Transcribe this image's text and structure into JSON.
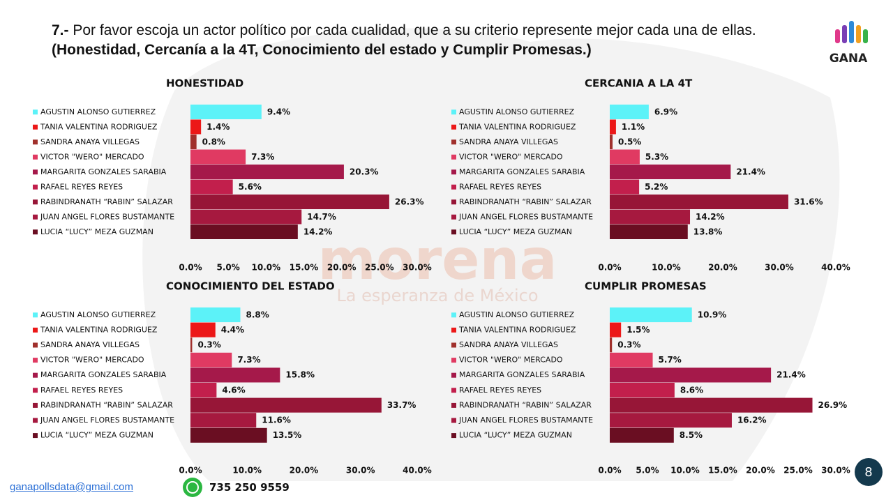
{
  "question": {
    "number": "7.-",
    "text": "Por favor escoja un actor político por cada cualidad, que a su criterio represente mejor cada una de ellas.",
    "emphasis": "(Honestidad, Cercanía a la 4T, Conocimiento del estado y Cumplir Promesas.)"
  },
  "logo": "GANA",
  "watermark": {
    "brand": "morena",
    "slogan": "La esperanza de México"
  },
  "footer": {
    "email": "ganapollsdata@gmail.com",
    "phone": "735 250 9559",
    "page": "8"
  },
  "chart_data": [
    {
      "type": "bar",
      "orientation": "horizontal",
      "title": "HONESTIDAD",
      "categories": [
        "AGUSTIN ALONSO GUTIERREZ",
        "TANIA VALENTINA RODRIGUEZ",
        "SANDRA ANAYA VILLEGAS",
        "VICTOR \"WERO\" MERCADO",
        "MARGARITA GONZALES SARABIA",
        "RAFAEL REYES REYES",
        "RABINDRANATH “RABIN” SALAZAR",
        "JUAN ANGEL FLORES BUSTAMANTE",
        "LUCIA “LUCY” MEZA GUZMAN"
      ],
      "colors": [
        "#5cf2f8",
        "#ec1818",
        "#a0302c",
        "#e03a62",
        "#a5194a",
        "#c21f4c",
        "#971637",
        "#a6193f",
        "#6a0e22"
      ],
      "values": [
        9.4,
        1.4,
        0.8,
        7.3,
        20.3,
        5.6,
        26.3,
        14.7,
        14.2
      ],
      "value_labels": [
        "9.4%",
        "1.4%",
        "0.8%",
        "7.3%",
        "20.3%",
        "5.6%",
        "26.3%",
        "14.7%",
        "14.2%"
      ],
      "xlim": [
        0,
        30
      ],
      "xticks": [
        {
          "value": 0,
          "label": "0.0%"
        },
        {
          "value": 5,
          "label": "5.0%"
        },
        {
          "value": 10,
          "label": "10.0%"
        },
        {
          "value": 15,
          "label": "15.0%"
        },
        {
          "value": 20,
          "label": "20.0%"
        },
        {
          "value": 25,
          "label": "25.0%"
        },
        {
          "value": 30,
          "label": "30.0%"
        }
      ],
      "grid": false
    },
    {
      "type": "bar",
      "orientation": "horizontal",
      "title": "CERCANIA A LA 4T",
      "categories": [
        "AGUSTIN ALONSO GUTIERREZ",
        "TANIA VALENTINA RODRIGUEZ",
        "SANDRA ANAYA VILLEGAS",
        "VICTOR \"WERO\" MERCADO",
        "MARGARITA GONZALES SARABIA",
        "RAFAEL REYES REYES",
        "RABINDRANATH “RABIN” SALAZAR",
        "JUAN ANGEL FLORES BUSTAMANTE",
        "LUCIA “LUCY” MEZA GUZMAN"
      ],
      "colors": [
        "#5cf2f8",
        "#ec1818",
        "#a0302c",
        "#e03a62",
        "#a5194a",
        "#c21f4c",
        "#971637",
        "#a6193f",
        "#6a0e22"
      ],
      "values": [
        6.9,
        1.1,
        0.5,
        5.3,
        21.4,
        5.2,
        31.6,
        14.2,
        13.8
      ],
      "value_labels": [
        "6.9%",
        "1.1%",
        "0.5%",
        "5.3%",
        "21.4%",
        "5.2%",
        "31.6%",
        "14.2%",
        "13.8%"
      ],
      "xlim": [
        0,
        40
      ],
      "xticks": [
        {
          "value": 0,
          "label": "0.0%"
        },
        {
          "value": 10,
          "label": "10.0%"
        },
        {
          "value": 20,
          "label": "20.0%"
        },
        {
          "value": 30,
          "label": "30.0%"
        },
        {
          "value": 40,
          "label": "40.0%"
        }
      ],
      "grid": false
    },
    {
      "type": "bar",
      "orientation": "horizontal",
      "title": "CONOCIMIENTO DEL ESTADO",
      "categories": [
        "AGUSTIN ALONSO GUTIERREZ",
        "TANIA VALENTINA RODRIGUEZ",
        "SANDRA ANAYA VILLEGAS",
        "VICTOR \"WERO\" MERCADO",
        "MARGARITA GONZALES SARABIA",
        "RAFAEL REYES REYES",
        "RABINDRANATH “RABIN” SALAZAR",
        "JUAN ANGEL FLORES BUSTAMANTE",
        "LUCIA “LUCY” MEZA GUZMAN"
      ],
      "colors": [
        "#5cf2f8",
        "#ec1818",
        "#a0302c",
        "#e03a62",
        "#a5194a",
        "#c21f4c",
        "#971637",
        "#a6193f",
        "#6a0e22"
      ],
      "values": [
        8.8,
        4.4,
        0.3,
        7.3,
        15.8,
        4.6,
        33.7,
        11.6,
        13.5
      ],
      "value_labels": [
        "8.8%",
        "4.4%",
        "0.3%",
        "7.3%",
        "15.8%",
        "4.6%",
        "33.7%",
        "11.6%",
        "13.5%"
      ],
      "xlim": [
        0,
        40
      ],
      "xticks": [
        {
          "value": 0,
          "label": "0.0%"
        },
        {
          "value": 10,
          "label": "10.0%"
        },
        {
          "value": 20,
          "label": "20.0%"
        },
        {
          "value": 30,
          "label": "30.0%"
        },
        {
          "value": 40,
          "label": "40.0%"
        }
      ],
      "grid": false
    },
    {
      "type": "bar",
      "orientation": "horizontal",
      "title": "CUMPLIR PROMESAS",
      "categories": [
        "AGUSTIN ALONSO GUTIERREZ",
        "TANIA VALENTINA RODRIGUEZ",
        "SANDRA ANAYA VILLEGAS",
        "VICTOR \"WERO\" MERCADO",
        "MARGARITA GONZALES SARABIA",
        "RAFAEL REYES REYES",
        "RABINDRANATH “RABIN” SALAZAR",
        "JUAN ANGEL FLORES BUSTAMANTE",
        "LUCIA “LUCY” MEZA GUZMAN"
      ],
      "colors": [
        "#5cf2f8",
        "#ec1818",
        "#a0302c",
        "#e03a62",
        "#a5194a",
        "#c21f4c",
        "#971637",
        "#a6193f",
        "#6a0e22"
      ],
      "values": [
        10.9,
        1.5,
        0.3,
        5.7,
        21.4,
        8.6,
        26.9,
        16.2,
        8.5
      ],
      "value_labels": [
        "10.9%",
        "1.5%",
        "0.3%",
        "5.7%",
        "21.4%",
        "8.6%",
        "26.9%",
        "16.2%",
        "8.5%"
      ],
      "xlim": [
        0,
        30
      ],
      "xticks": [
        {
          "value": 0,
          "label": "0.0%"
        },
        {
          "value": 5,
          "label": "5.0%"
        },
        {
          "value": 10,
          "label": "10.0%"
        },
        {
          "value": 15,
          "label": "15.0%"
        },
        {
          "value": 20,
          "label": "20.0%"
        },
        {
          "value": 25,
          "label": "25.0%"
        },
        {
          "value": 30,
          "label": "30.0%"
        }
      ],
      "grid": false
    }
  ]
}
